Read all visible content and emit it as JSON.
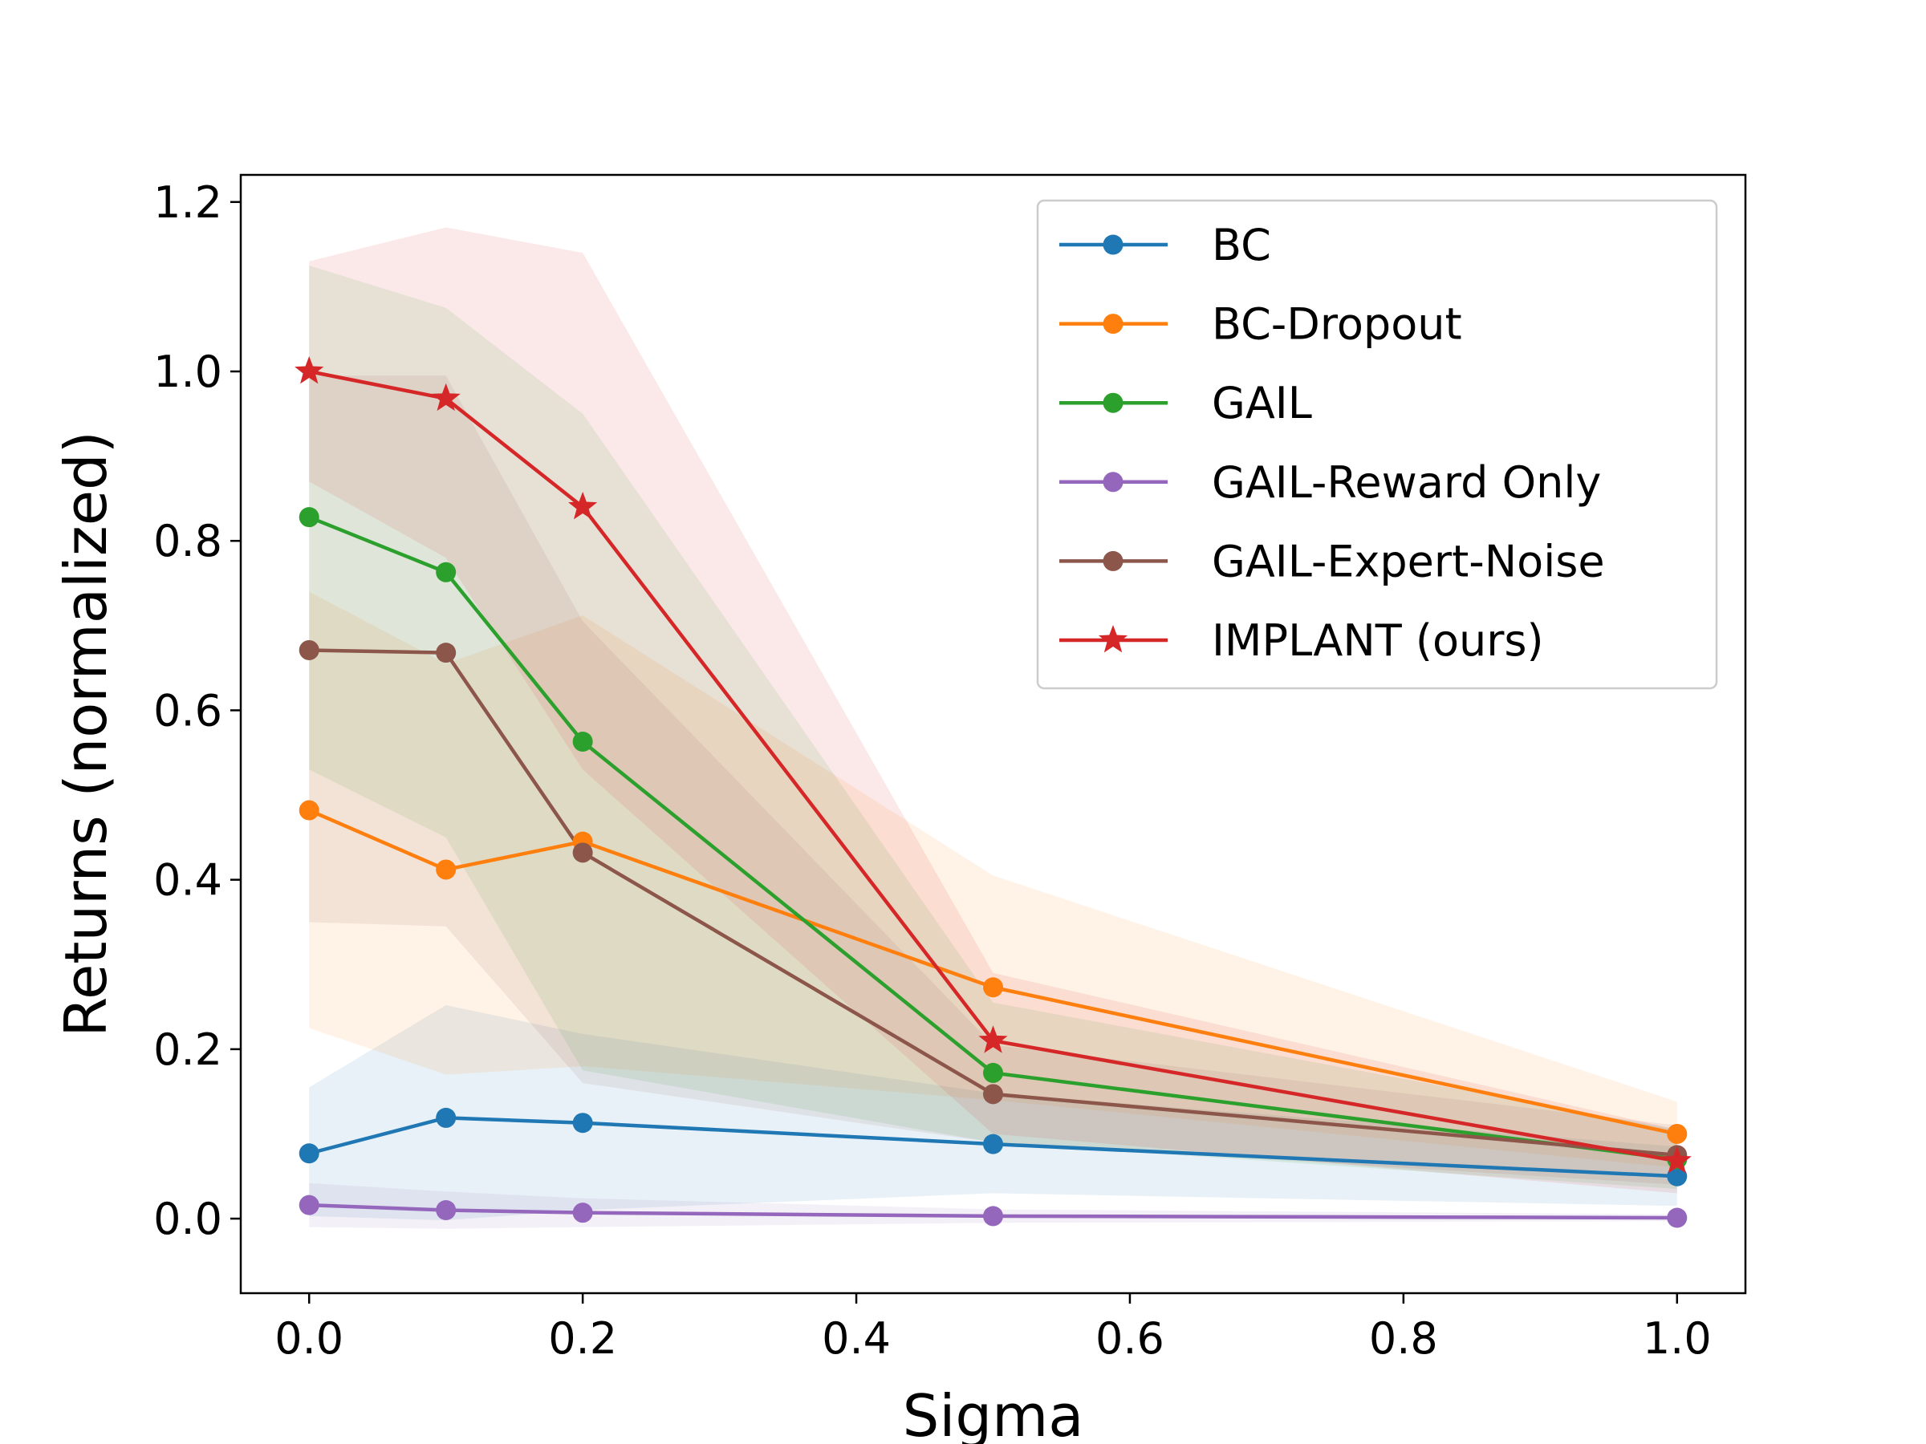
{
  "chart_data": {
    "type": "line",
    "xlabel": "Sigma",
    "ylabel": "Returns (normalized)",
    "xlim": [
      -0.05,
      1.05
    ],
    "ylim": [
      -0.088,
      1.232
    ],
    "xticks": [
      0.0,
      0.2,
      0.4,
      0.6,
      0.8,
      1.0
    ],
    "xtick_labels": [
      "0.0",
      "0.2",
      "0.4",
      "0.6",
      "0.8",
      "1.0"
    ],
    "yticks": [
      0.0,
      0.2,
      0.4,
      0.6,
      0.8,
      1.0,
      1.2
    ],
    "ytick_labels": [
      "0.0",
      "0.2",
      "0.4",
      "0.6",
      "0.8",
      "1.0",
      "1.2"
    ],
    "grid": false,
    "legend_position": "top-right",
    "x": [
      0.0,
      0.1,
      0.2,
      0.5,
      1.0
    ],
    "series": [
      {
        "name": "BC",
        "color": "#1f77b4",
        "marker": "circle",
        "values": [
          0.077,
          0.119,
          0.113,
          0.088,
          0.05
        ],
        "lower": [
          0.003,
          -0.002,
          0.01,
          0.03,
          0.015
        ],
        "upper": [
          0.155,
          0.252,
          0.218,
          0.148,
          0.085
        ]
      },
      {
        "name": "BC-Dropout",
        "color": "#ff7f0e",
        "marker": "circle",
        "values": [
          0.482,
          0.412,
          0.445,
          0.273,
          0.1
        ],
        "lower": [
          0.225,
          0.17,
          0.18,
          0.14,
          0.06
        ],
        "upper": [
          0.74,
          0.655,
          0.712,
          0.405,
          0.138
        ]
      },
      {
        "name": "GAIL",
        "color": "#2ca02c",
        "marker": "circle",
        "values": [
          0.828,
          0.763,
          0.563,
          0.172,
          0.07
        ],
        "lower": [
          0.53,
          0.45,
          0.175,
          0.09,
          0.035
        ],
        "upper": [
          1.125,
          1.075,
          0.95,
          0.255,
          0.105
        ]
      },
      {
        "name": "GAIL-Reward Only",
        "color": "#9467bd",
        "marker": "circle",
        "values": [
          0.016,
          0.01,
          0.007,
          0.003,
          0.001
        ],
        "lower": [
          -0.01,
          -0.012,
          -0.01,
          -0.005,
          -0.003
        ],
        "upper": [
          0.042,
          0.032,
          0.024,
          0.011,
          0.005
        ]
      },
      {
        "name": "GAIL-Expert-Noise",
        "color": "#8c564b",
        "marker": "circle",
        "values": [
          0.671,
          0.668,
          0.432,
          0.147,
          0.075
        ],
        "lower": [
          0.35,
          0.345,
          0.16,
          0.09,
          0.04
        ],
        "upper": [
          0.995,
          0.995,
          0.705,
          0.205,
          0.11
        ]
      },
      {
        "name": "IMPLANT (ours)",
        "color": "#d62728",
        "marker": "star",
        "values": [
          1.0,
          0.968,
          0.84,
          0.21,
          0.068
        ],
        "lower": [
          0.87,
          0.78,
          0.53,
          0.1,
          0.03
        ],
        "upper": [
          1.13,
          1.17,
          1.14,
          0.29,
          0.105
        ]
      }
    ]
  }
}
